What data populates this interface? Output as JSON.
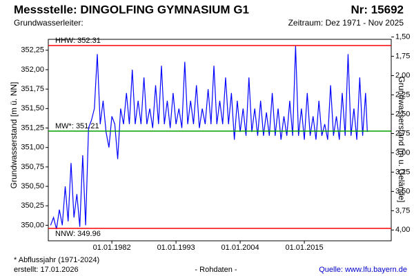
{
  "chart_data": {
    "type": "line",
    "title": "Messstelle: DINGOLFING GYMNASIUM G1",
    "number": "Nr: 15692",
    "subtitle": "Grundwasserleiter:",
    "period": "Zeitraum: Dez 1971 - Nov 2025",
    "ylabel": "Grundwasserstand [m ü. NN]",
    "y2label": "Grundwasserstand [m u. Gelände]",
    "footnote": "* Abflussjahr (1971-2024)",
    "created": "erstellt:  17.01.2026",
    "note": "- Rohdaten -",
    "source": "Quelle: www.lfu.bayern.de",
    "xlim": [
      1971.1,
      2029.9
    ],
    "xticks": [
      {
        "value": 1982,
        "label": "01.01.1982"
      },
      {
        "value": 1993,
        "label": "01.01.1993"
      },
      {
        "value": 2004,
        "label": "01.01.2004"
      },
      {
        "value": 2015,
        "label": "01.01.2015"
      }
    ],
    "ylim": [
      349.8,
      352.39
    ],
    "yticks": [
      {
        "value": 350,
        "label": "350,00"
      },
      {
        "value": 350.25,
        "label": "350,25"
      },
      {
        "value": 350.5,
        "label": "350,50"
      },
      {
        "value": 350.75,
        "label": "350,75"
      },
      {
        "value": 351,
        "label": "351,00"
      },
      {
        "value": 351.25,
        "label": "351,25"
      },
      {
        "value": 351.5,
        "label": "351,50"
      },
      {
        "value": 351.75,
        "label": "351,75"
      },
      {
        "value": 352,
        "label": "352,00"
      },
      {
        "value": 352.25,
        "label": "352,25"
      }
    ],
    "y2lim": [
      4.14,
      1.53
    ],
    "y2ticks": [
      {
        "value": 1.5,
        "label": "1,50"
      },
      {
        "value": 1.75,
        "label": "1,75"
      },
      {
        "value": 2,
        "label": "2,00"
      },
      {
        "value": 2.25,
        "label": "2,25"
      },
      {
        "value": 2.5,
        "label": "2,50"
      },
      {
        "value": 2.75,
        "label": "2,75"
      },
      {
        "value": 3,
        "label": "3,00"
      },
      {
        "value": 3.25,
        "label": "3,25"
      },
      {
        "value": 3.5,
        "label": "3,50"
      },
      {
        "value": 3.75,
        "label": "3,75"
      },
      {
        "value": 4,
        "label": "4,00"
      }
    ],
    "reference_lines": [
      {
        "value": 352.31,
        "label": "HHW: 352.31",
        "color": "#ff0000"
      },
      {
        "value": 351.21,
        "label": "MW*: 351.21",
        "color": "#00a000"
      },
      {
        "value": 349.96,
        "label": "NNW: 349.96",
        "color": "#ff0000"
      }
    ],
    "series": [
      {
        "color": "#0000ff",
        "x": [
          1971.5,
          1972,
          1972.5,
          1973,
          1973.5,
          1974,
          1974.5,
          1975,
          1975.5,
          1976,
          1976.5,
          1977,
          1977.5,
          1978,
          1978.5,
          1979,
          1979.5,
          1980,
          1980.5,
          1981,
          1981.5,
          1982,
          1982.5,
          1983,
          1983.5,
          1984,
          1984.5,
          1985,
          1985.5,
          1986,
          1986.5,
          1987,
          1987.5,
          1988,
          1988.5,
          1989,
          1989.5,
          1990,
          1990.5,
          1991,
          1991.5,
          1992,
          1992.5,
          1993,
          1993.5,
          1994,
          1994.5,
          1995,
          1995.5,
          1996,
          1996.5,
          1997,
          1997.5,
          1998,
          1998.5,
          1999,
          1999.5,
          2000,
          2000.5,
          2001,
          2001.5,
          2002,
          2002.5,
          2003,
          2003.5,
          2004,
          2004.5,
          2005,
          2005.5,
          2006,
          2006.5,
          2007,
          2007.5,
          2008,
          2008.5,
          2009,
          2009.5,
          2010,
          2010.5,
          2011,
          2011.5,
          2012,
          2012.5,
          2013,
          2013.5,
          2014,
          2014.5,
          2015,
          2015.5,
          2016,
          2016.5,
          2017,
          2017.5,
          2018,
          2018.5,
          2019,
          2019.5,
          2020,
          2020.5,
          2021,
          2021.5,
          2022,
          2022.5,
          2023,
          2023.5,
          2024,
          2024.5,
          2025,
          2025.5,
          2025.8
        ],
        "values": [
          350.0,
          350.1,
          349.95,
          350.2,
          350.0,
          350.5,
          350.05,
          350.8,
          350.1,
          350.4,
          349.98,
          350.9,
          350.0,
          351.25,
          351.35,
          351.5,
          352.2,
          351.3,
          351.6,
          351.2,
          351.0,
          351.4,
          351.3,
          350.85,
          351.5,
          351.3,
          351.7,
          351.3,
          352.0,
          351.3,
          351.6,
          351.3,
          351.9,
          351.3,
          351.5,
          351.25,
          351.8,
          351.3,
          352.05,
          351.3,
          351.6,
          351.25,
          351.7,
          351.3,
          351.5,
          351.25,
          352.1,
          351.3,
          351.6,
          351.3,
          351.8,
          351.25,
          351.5,
          351.3,
          351.75,
          351.3,
          352.05,
          351.3,
          351.6,
          351.3,
          351.9,
          351.3,
          351.7,
          351.1,
          351.6,
          351.2,
          351.5,
          351.15,
          351.9,
          351.2,
          351.5,
          351.15,
          351.6,
          351.15,
          351.45,
          351.15,
          351.7,
          351.15,
          351.5,
          351.1,
          351.4,
          351.15,
          351.6,
          351.15,
          352.31,
          351.15,
          351.5,
          351.1,
          351.7,
          351.15,
          351.4,
          351.1,
          351.6,
          351.15,
          351.3,
          351.1,
          351.8,
          351.15,
          351.4,
          351.1,
          351.7,
          351.15,
          352.2,
          351.15,
          351.5,
          351.1,
          351.9,
          351.15,
          351.7,
          351.2
        ]
      }
    ]
  }
}
